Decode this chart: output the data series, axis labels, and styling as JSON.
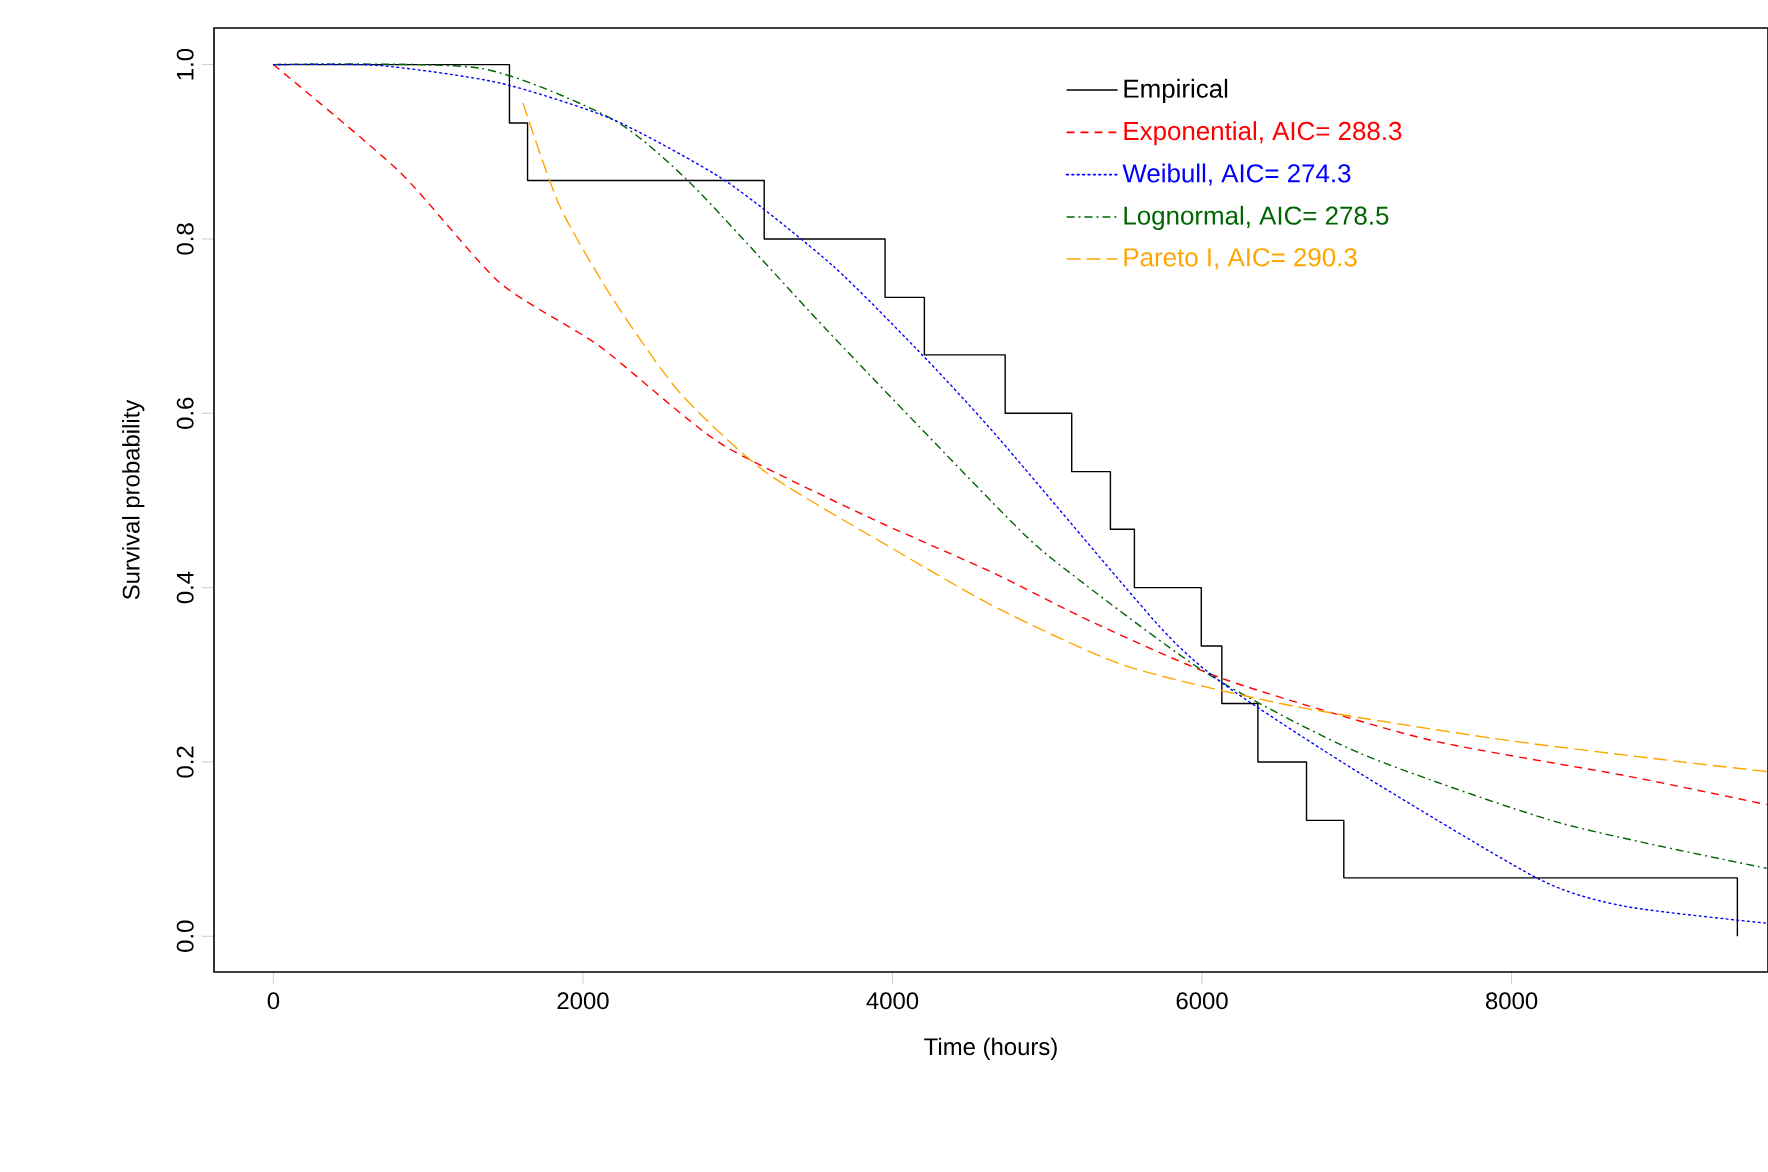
{
  "chart_data": {
    "type": "line",
    "xlabel": "Time (hours)",
    "ylabel": "Survival probability",
    "xlim": [
      -384,
      9657
    ],
    "ylim": [
      -0.041,
      1.042
    ],
    "xticks": [
      0,
      2000,
      4000,
      6000,
      8000
    ],
    "yticks": [
      {
        "value": 0,
        "label": "0.0"
      },
      {
        "value": 0.2,
        "label": "0.2"
      },
      {
        "value": 0.4,
        "label": "0.4"
      },
      {
        "value": 0.6,
        "label": "0.6"
      },
      {
        "value": 0.8,
        "label": "0.8"
      },
      {
        "value": 1,
        "label": "1.0"
      }
    ],
    "grid": false,
    "legend": "top right",
    "marker": "none",
    "series": [
      {
        "name": "Empirical",
        "type": "step",
        "color": "#000000",
        "line_style": "solid",
        "x": [
          0,
          1525,
          1642,
          3171,
          3952,
          4206,
          4728,
          5158,
          5408,
          5563,
          5995,
          6128,
          6361,
          6675,
          6916,
          9459
        ],
        "values": [
          1,
          0.933,
          0.867,
          0.8,
          0.733,
          0.667,
          0.6,
          0.533,
          0.467,
          0.4,
          0.333,
          0.267,
          0.2,
          0.133,
          0.067,
          0
        ]
      },
      {
        "name": "Exponential, AIC= 288.3",
        "color": "#ff0000",
        "line_style": "dashed",
        "x": [
          0,
          815,
          1461,
          2107,
          2883,
          3831,
          4650,
          5297,
          6158,
          7451,
          8743,
          9648
        ],
        "values": [
          1,
          0.877,
          0.75,
          0.677,
          0.566,
          0.482,
          0.417,
          0.36,
          0.294,
          0.226,
          0.184,
          0.151
        ]
      },
      {
        "name": "Weibull, AIC= 274.3",
        "color": "#0000ff",
        "line_style": "dotted",
        "x": [
          0,
          685,
          1461,
          2194,
          2926,
          3616,
          4219,
          4693,
          5727,
          6158,
          7020,
          8183,
          8743,
          9648
        ],
        "values": [
          1,
          0.999,
          0.979,
          0.937,
          0.866,
          0.769,
          0.662,
          0.57,
          0.355,
          0.287,
          0.187,
          0.065,
          0.034,
          0.015
        ]
      },
      {
        "name": "Lognormal, AIC= 278.5",
        "color": "#006400",
        "line_style": "dashdot",
        "x": [
          0,
          1331,
          2194,
          2711,
          3573,
          4650,
          5038,
          6028,
          7020,
          8313,
          9648
        ],
        "values": [
          1,
          0.996,
          0.937,
          0.861,
          0.696,
          0.497,
          0.432,
          0.302,
          0.21,
          0.13,
          0.078
        ]
      },
      {
        "name": "Pareto I, AIC= 290.3",
        "color": "#ffa500",
        "line_style": "longdashed",
        "x": [
          1612,
          1849,
          2194,
          2624,
          3184,
          4046,
          4693,
          5511,
          6590,
          7882,
          8959,
          9648
        ],
        "values": [
          0.956,
          0.838,
          0.731,
          0.624,
          0.532,
          0.44,
          0.375,
          0.31,
          0.264,
          0.227,
          0.203,
          0.189
        ]
      }
    ]
  }
}
